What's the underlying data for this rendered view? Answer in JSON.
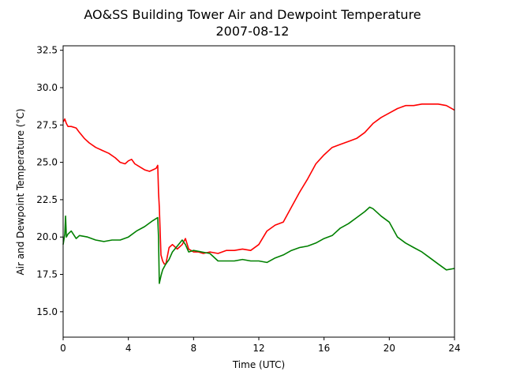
{
  "chart_data": {
    "type": "line",
    "title": "AO&SS Building Tower Air and Dewpoint Temperature",
    "subtitle": "2007-08-12",
    "xlabel": "Time (UTC)",
    "ylabel": "Air and Dewpoint Temperature (°C)",
    "xlim": [
      0,
      24
    ],
    "ylim": [
      13.3,
      32.8
    ],
    "xticks": [
      0,
      4,
      8,
      12,
      16,
      20,
      24
    ],
    "xtick_labels": [
      "0",
      "4",
      "8",
      "12",
      "16",
      "20",
      "24"
    ],
    "yticks": [
      15.0,
      17.5,
      20.0,
      22.5,
      25.0,
      27.5,
      30.0,
      32.5
    ],
    "ytick_labels": [
      "15.0",
      "17.5",
      "20.0",
      "22.5",
      "25.0",
      "27.5",
      "30.0",
      "32.5"
    ],
    "grid": false,
    "legend": "none",
    "series": [
      {
        "color": "#ff0000",
        "x": [
          0,
          0.1,
          0.2,
          0.3,
          0.5,
          0.8,
          1.0,
          1.3,
          1.6,
          2.0,
          2.4,
          2.8,
          3.2,
          3.5,
          3.8,
          4.0,
          4.2,
          4.4,
          4.7,
          5.0,
          5.3,
          5.5,
          5.7,
          5.8,
          5.85,
          5.9,
          6.0,
          6.1,
          6.2,
          6.3,
          6.5,
          6.7,
          7.0,
          7.3,
          7.5,
          7.7,
          8.0,
          8.3,
          8.6,
          9.0,
          9.5,
          10.0,
          10.5,
          11.0,
          11.5,
          12.0,
          12.5,
          13.0,
          13.5,
          14.0,
          14.5,
          15.0,
          15.5,
          16.0,
          16.5,
          17.0,
          17.5,
          18.0,
          18.5,
          19.0,
          19.5,
          20.0,
          20.5,
          21.0,
          21.5,
          22.0,
          22.5,
          23.0,
          23.5,
          24.0
        ],
        "values": [
          27.7,
          27.9,
          27.6,
          27.4,
          27.4,
          27.3,
          27.0,
          26.6,
          26.3,
          26.0,
          25.8,
          25.6,
          25.3,
          25.0,
          24.9,
          25.1,
          25.2,
          24.9,
          24.7,
          24.5,
          24.4,
          24.5,
          24.6,
          24.8,
          23.0,
          22.0,
          18.8,
          18.4,
          18.2,
          18.2,
          19.3,
          19.5,
          19.2,
          19.5,
          19.9,
          19.2,
          19.0,
          19.0,
          18.9,
          19.0,
          18.9,
          19.1,
          19.1,
          19.2,
          19.1,
          19.5,
          20.4,
          20.8,
          21.0,
          22.0,
          23.0,
          23.9,
          24.9,
          25.5,
          26.0,
          26.2,
          26.4,
          26.6,
          27.0,
          27.6,
          28.0,
          28.3,
          28.6,
          28.8,
          28.8,
          28.9,
          28.9,
          28.9,
          28.8,
          28.5
        ]
      },
      {
        "color": "#008000",
        "x": [
          0,
          0.1,
          0.15,
          0.2,
          0.3,
          0.5,
          0.8,
          1.0,
          1.5,
          2.0,
          2.5,
          3.0,
          3.5,
          4.0,
          4.5,
          5.0,
          5.5,
          5.8,
          5.85,
          5.9,
          6.0,
          6.1,
          6.3,
          6.5,
          6.7,
          7.0,
          7.3,
          7.5,
          7.7,
          8.0,
          8.5,
          9.0,
          9.5,
          10.0,
          10.5,
          11.0,
          11.5,
          12.0,
          12.5,
          13.0,
          13.5,
          14.0,
          14.5,
          15.0,
          15.5,
          16.0,
          16.5,
          17.0,
          17.5,
          18.0,
          18.5,
          18.8,
          19.0,
          19.5,
          20.0,
          20.5,
          21.0,
          21.5,
          22.0,
          22.5,
          23.0,
          23.5,
          24.0
        ],
        "values": [
          19.5,
          20.2,
          21.4,
          20.0,
          20.2,
          20.4,
          19.9,
          20.1,
          20.0,
          19.8,
          19.7,
          19.8,
          19.8,
          20.0,
          20.4,
          20.7,
          21.1,
          21.3,
          20.0,
          16.9,
          17.4,
          17.8,
          18.2,
          18.5,
          19.0,
          19.4,
          19.8,
          19.5,
          19.0,
          19.1,
          19.0,
          18.9,
          18.4,
          18.4,
          18.4,
          18.5,
          18.4,
          18.4,
          18.3,
          18.6,
          18.8,
          19.1,
          19.3,
          19.4,
          19.6,
          19.9,
          20.1,
          20.6,
          20.9,
          21.3,
          21.7,
          22.0,
          21.9,
          21.4,
          21.0,
          20.0,
          19.6,
          19.3,
          19.0,
          18.6,
          18.2,
          17.8,
          17.9
        ]
      }
    ]
  }
}
